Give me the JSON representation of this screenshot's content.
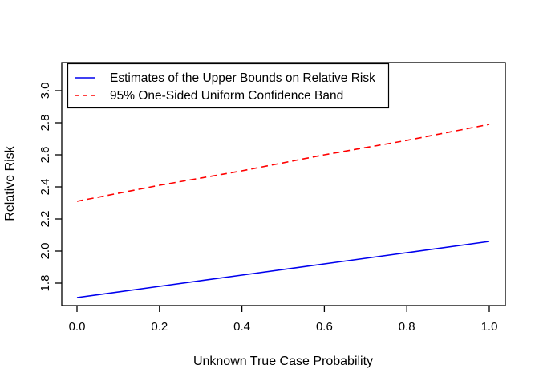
{
  "figure": {
    "background_color": "#FFFFFF",
    "axis_color": "#000000",
    "text_color": "#000000"
  },
  "chart_data": {
    "type": "line",
    "title": "",
    "xlabel": "Unknown True Case Probability",
    "ylabel": "Relative Risk",
    "xlim": [
      0.0,
      1.0
    ],
    "ylim": [
      1.8,
      3.0
    ],
    "x_tick_labels": [
      "0.0",
      "0.2",
      "0.4",
      "0.6",
      "0.8",
      "1.0"
    ],
    "x_tick_values": [
      0.0,
      0.2,
      0.4,
      0.6,
      0.8,
      1.0
    ],
    "y_tick_labels": [
      "1.8",
      "2.0",
      "2.2",
      "2.4",
      "2.6",
      "2.8",
      "3.0"
    ],
    "y_tick_values": [
      1.8,
      2.0,
      2.2,
      2.4,
      2.6,
      2.8,
      3.0
    ],
    "grid": false,
    "legend_position": "top-left",
    "x": [
      0.0,
      0.2,
      0.4,
      0.6,
      0.8,
      1.0
    ],
    "series": [
      {
        "name": "Estimates of the Upper Bounds on Relative Risk",
        "values": [
          1.71,
          1.78,
          1.85,
          1.92,
          1.99,
          2.06
        ],
        "color": "#0000EE",
        "line_style": "solid"
      },
      {
        "name": "95% One-Sided Uniform Confidence Band",
        "values": [
          2.31,
          2.41,
          2.5,
          2.6,
          2.69,
          2.79
        ],
        "color": "#FF0000",
        "line_style": "dashed"
      }
    ]
  }
}
